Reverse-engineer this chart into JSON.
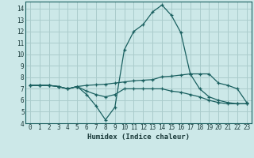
{
  "xlabel": "Humidex (Indice chaleur)",
  "bg_color": "#cce8e8",
  "grid_color": "#aacccc",
  "line_color": "#1a6060",
  "xlim": [
    -0.5,
    23.5
  ],
  "ylim": [
    4.0,
    14.6
  ],
  "yticks": [
    4,
    5,
    6,
    7,
    8,
    9,
    10,
    11,
    12,
    13,
    14
  ],
  "xticks": [
    0,
    1,
    2,
    3,
    4,
    5,
    6,
    7,
    8,
    9,
    10,
    11,
    12,
    13,
    14,
    15,
    16,
    17,
    18,
    19,
    20,
    21,
    22,
    23
  ],
  "curve1_x": [
    0,
    1,
    2,
    3,
    4,
    5,
    6,
    7,
    8,
    9,
    10,
    11,
    12,
    13,
    14,
    15,
    16,
    17,
    18,
    19,
    20,
    21,
    22,
    23
  ],
  "curve1_y": [
    7.3,
    7.3,
    7.3,
    7.2,
    7.0,
    7.2,
    7.3,
    7.35,
    7.4,
    7.5,
    7.6,
    7.7,
    7.75,
    7.8,
    8.05,
    8.1,
    8.2,
    8.3,
    8.3,
    8.3,
    7.5,
    7.3,
    7.0,
    5.8
  ],
  "curve2_x": [
    0,
    1,
    2,
    3,
    4,
    5,
    6,
    7,
    8,
    9,
    10,
    11,
    12,
    13,
    14,
    15,
    16,
    17,
    18,
    19,
    20,
    21,
    22,
    23
  ],
  "curve2_y": [
    7.3,
    7.3,
    7.3,
    7.2,
    7.0,
    7.2,
    6.5,
    5.5,
    4.3,
    5.4,
    10.4,
    12.0,
    12.6,
    13.7,
    14.3,
    13.4,
    11.9,
    8.3,
    7.0,
    6.3,
    6.0,
    5.8,
    5.7,
    5.7
  ],
  "curve3_x": [
    0,
    1,
    2,
    3,
    4,
    5,
    6,
    7,
    8,
    9,
    10,
    11,
    12,
    13,
    14,
    15,
    16,
    17,
    18,
    19,
    20,
    21,
    22,
    23
  ],
  "curve3_y": [
    7.3,
    7.3,
    7.3,
    7.2,
    7.0,
    7.2,
    6.8,
    6.5,
    6.3,
    6.5,
    7.0,
    7.0,
    7.0,
    7.0,
    7.0,
    6.8,
    6.7,
    6.5,
    6.3,
    6.0,
    5.8,
    5.7,
    5.7,
    5.7
  ],
  "tick_fontsize": 5.5,
  "xlabel_fontsize": 6.5
}
